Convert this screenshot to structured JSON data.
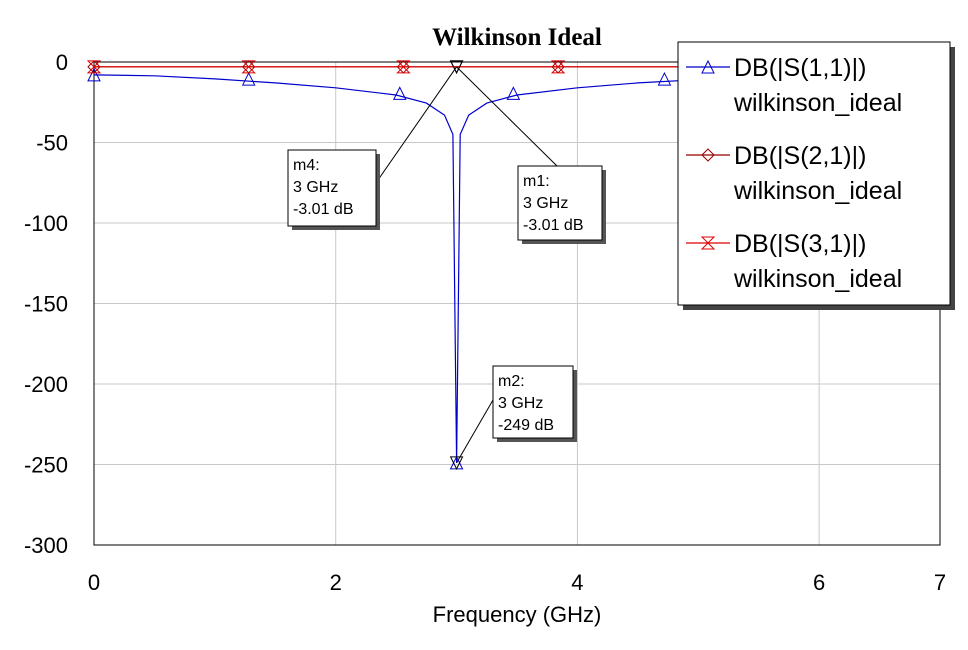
{
  "chart_data": {
    "type": "line",
    "title": "Wilkinson Ideal",
    "xlabel": "Frequency (GHz)",
    "ylabel": "",
    "xlim": [
      0,
      7
    ],
    "ylim": [
      -300,
      0
    ],
    "x_ticks": [
      "0",
      "2",
      "4",
      "6",
      "7"
    ],
    "y_ticks": [
      "0",
      "-50",
      "-100",
      "-150",
      "-200",
      "-250",
      "-300"
    ],
    "grid": true,
    "legend_position": "top-right",
    "series": [
      {
        "name": "DB(|S(1,1)|)",
        "subname": "wilkinson_ideal",
        "color": "#0000cc",
        "marker": "triangle-up",
        "x": [
          0,
          0.5,
          1.0,
          1.5,
          2.0,
          2.5,
          2.75,
          2.9,
          2.97,
          3.0,
          3.03,
          3.1,
          3.25,
          3.5,
          4.0,
          4.5,
          5.0,
          5.5,
          6.0,
          6.5,
          7.0
        ],
        "y": [
          -8,
          -8.6,
          -10.5,
          -13,
          -16,
          -20.5,
          -25.5,
          -33,
          -45,
          -249,
          -45,
          -33,
          -25.5,
          -20.5,
          -16,
          -13,
          -11,
          -10,
          -9,
          -8.6,
          -8
        ],
        "marker_x": [
          0,
          1.28,
          2.53,
          3.0,
          3.47,
          4.72,
          5.98
        ],
        "marker_y": [
          -8,
          -10.6,
          -19.5,
          -249,
          -19.5,
          -10.6,
          -8.5
        ]
      },
      {
        "name": "DB(|S(2,1)|)",
        "subname": "wilkinson_ideal",
        "color": "#990000",
        "marker": "diamond",
        "x": [
          0,
          7
        ],
        "y": [
          -3.01,
          -3.01
        ],
        "marker_x": [
          0,
          1.28,
          2.56,
          3.84,
          5.12
        ],
        "marker_y": [
          -3.01,
          -3.01,
          -3.01,
          -3.01,
          -3.01
        ]
      },
      {
        "name": "DB(|S(3,1)|)",
        "subname": "wilkinson_ideal",
        "color": "#dd0000",
        "marker": "bowtie",
        "x": [
          0,
          7
        ],
        "y": [
          -3.01,
          -3.01
        ],
        "marker_x": [
          0,
          1.28,
          2.56,
          3.84,
          5.12
        ],
        "marker_y": [
          -3.01,
          -3.01,
          -3.01,
          -3.01,
          -3.01
        ]
      }
    ],
    "markers": [
      {
        "id": "m4",
        "freq": "3 GHz",
        "value": "-3.01 dB",
        "x": 3,
        "y": -3.01
      },
      {
        "id": "m1",
        "freq": "3 GHz",
        "value": "-3.01 dB",
        "x": 3,
        "y": -3.01
      },
      {
        "id": "m2",
        "freq": "3 GHz",
        "value": "-249 dB",
        "x": 3,
        "y": -249
      }
    ]
  }
}
